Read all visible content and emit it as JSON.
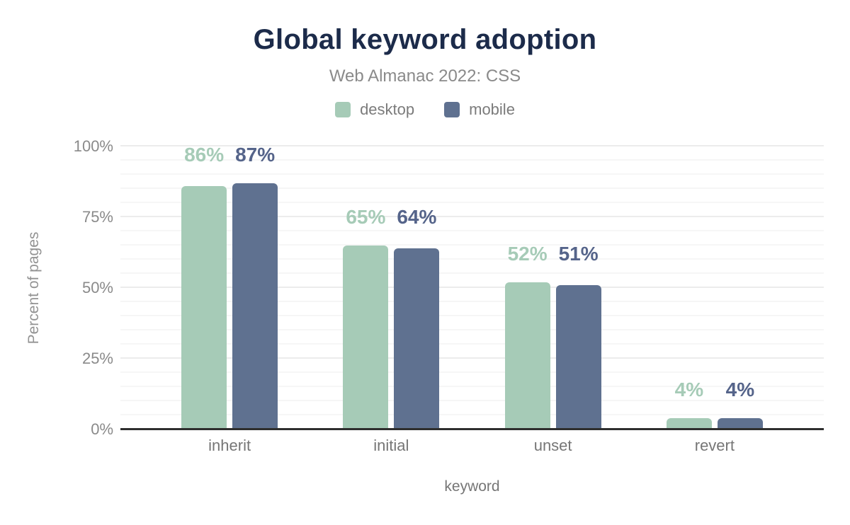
{
  "chart_data": {
    "type": "bar",
    "title": "Global keyword adoption",
    "subtitle": "Web Almanac 2022: CSS",
    "xlabel": "keyword",
    "ylabel": "Percent of pages",
    "categories": [
      "inherit",
      "initial",
      "unset",
      "revert"
    ],
    "series": [
      {
        "name": "desktop",
        "color": "#a6cbb7",
        "label_color": "#a6cbb7",
        "values": [
          86,
          65,
          52,
          4
        ]
      },
      {
        "name": "mobile",
        "color": "#5f7190",
        "label_color": "#55648a",
        "values": [
          87,
          64,
          51,
          4
        ]
      }
    ],
    "value_suffix": "%",
    "ylim": [
      0,
      100
    ],
    "yticks": [
      0,
      25,
      50,
      75,
      100
    ],
    "ytick_suffix": "%",
    "grid": {
      "minor_step": 5,
      "major_step": 25,
      "minor_color": "#f6f6f6",
      "major_color": "#ececec"
    },
    "legend_position": "top"
  },
  "theme": {
    "title_color": "#1c2b4a",
    "subtitle_color": "#8a8a8a",
    "axis_text_color": "#8a8a8a",
    "axis_line_color": "#2e2e2e",
    "background": "#ffffff"
  }
}
